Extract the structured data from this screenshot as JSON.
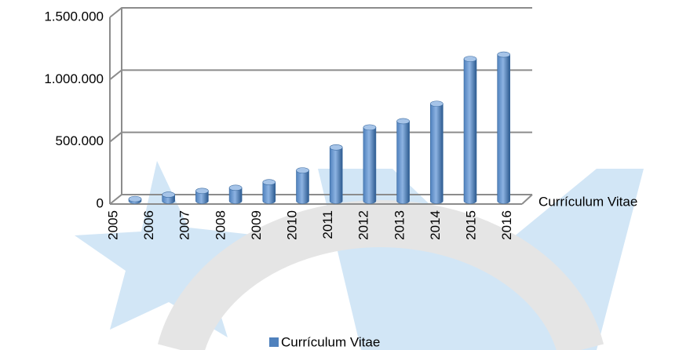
{
  "chart_data": {
    "type": "bar",
    "categories": [
      "2005",
      "2006",
      "2007",
      "2008",
      "2009",
      "2010",
      "2011",
      "2012",
      "2013",
      "2014",
      "2015",
      "2016"
    ],
    "series": [
      {
        "name": "Currículum Vitae",
        "color": "#4f81bd",
        "values": [
          15000,
          50000,
          80000,
          105000,
          150000,
          245000,
          430000,
          590000,
          640000,
          780000,
          1140000,
          1175000
        ]
      }
    ],
    "ylim": [
      0,
      1500000
    ],
    "yticks": [
      0,
      {
        "value": 500000,
        "label": "500.000"
      },
      {
        "value": 1000000,
        "label": "1.000.000"
      },
      {
        "value": 1500000,
        "label": "1.500.000"
      }
    ],
    "grid": true,
    "legend": "bottom"
  }
}
